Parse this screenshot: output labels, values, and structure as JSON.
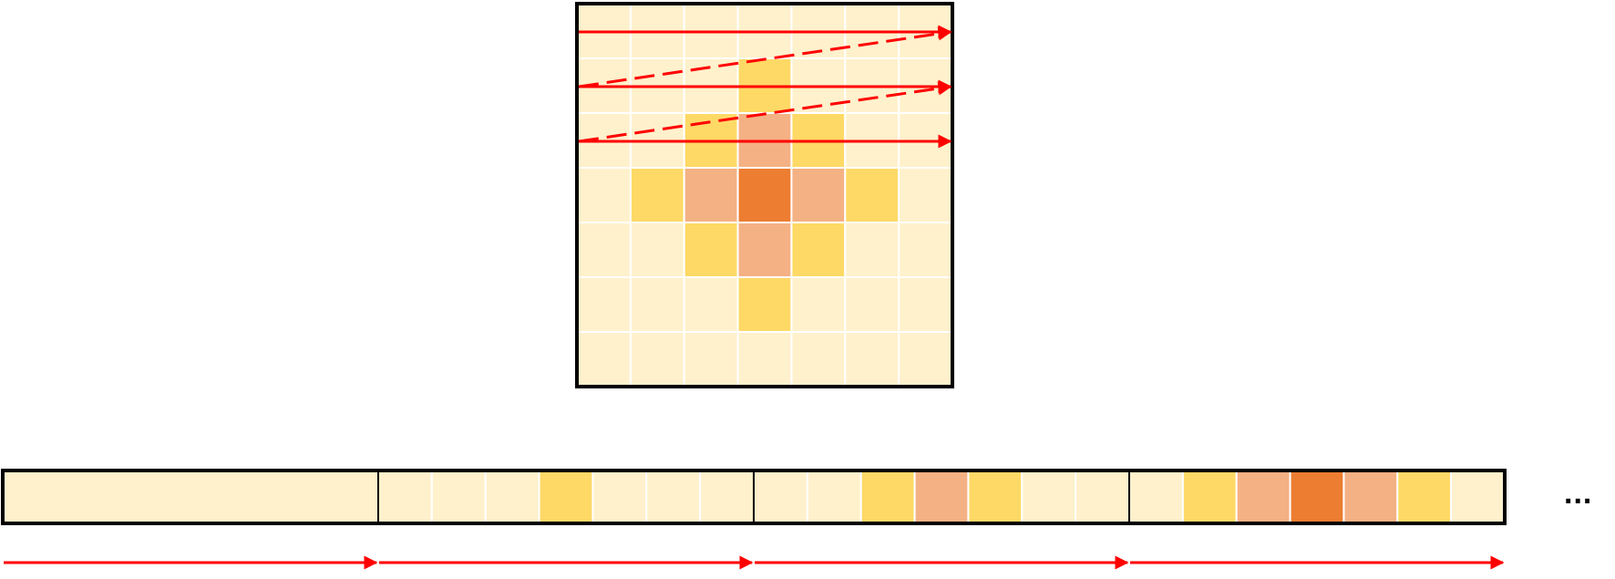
{
  "colors": {
    "level0": "#fff1cc",
    "level1": "#fed966",
    "level2": "#f4b184",
    "level3": "#ed7d31",
    "gridline": "#ffffff",
    "border": "#000000",
    "arrow": "#ff0000"
  },
  "grid": {
    "rows": 7,
    "cols": 7,
    "levels": [
      [
        0,
        0,
        0,
        0,
        0,
        0,
        0
      ],
      [
        0,
        0,
        0,
        1,
        0,
        0,
        0
      ],
      [
        0,
        0,
        1,
        2,
        1,
        0,
        0
      ],
      [
        0,
        1,
        2,
        3,
        2,
        1,
        0
      ],
      [
        0,
        0,
        1,
        2,
        1,
        0,
        0
      ],
      [
        0,
        0,
        0,
        1,
        0,
        0,
        0
      ],
      [
        0,
        0,
        0,
        0,
        0,
        0,
        0
      ]
    ],
    "scan_rows_shown": 3,
    "scan_order": "row-major"
  },
  "sequence": {
    "segments_shown": 4,
    "continuation": "..."
  }
}
